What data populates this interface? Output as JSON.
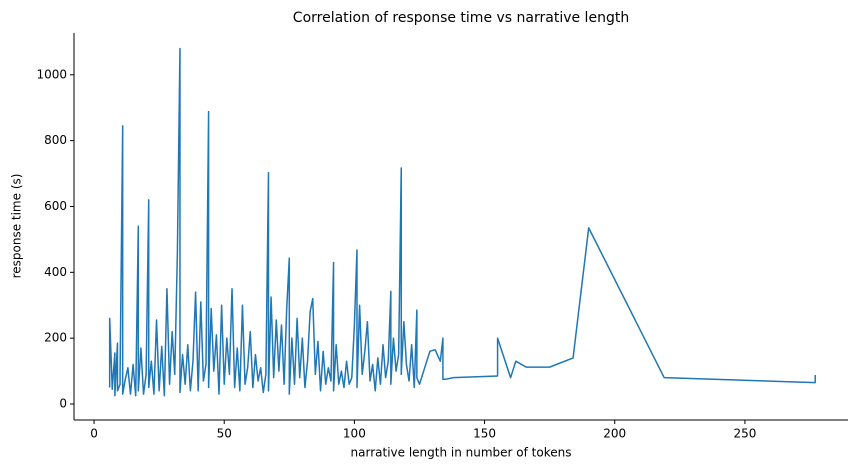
{
  "chart_data": {
    "type": "line",
    "title": "Correlation of response time vs narrative length",
    "xlabel": "narrative length in number of tokens",
    "ylabel": "response time (s)",
    "color": "#1f77b4",
    "xlim": [
      -7.7,
      289.6
    ],
    "ylim": [
      -48.6,
      1127
    ],
    "xticks": [
      0,
      50,
      100,
      150,
      200,
      250
    ],
    "yticks": [
      0,
      200,
      400,
      600,
      800,
      1000
    ],
    "x": [
      6,
      6,
      7,
      8,
      8,
      9,
      9,
      10,
      10,
      11,
      11,
      12,
      13,
      14,
      15,
      16,
      17,
      17,
      18,
      19,
      20,
      21,
      21,
      22,
      23,
      24,
      25,
      26,
      27,
      28,
      29,
      30,
      31,
      32,
      33,
      33,
      34,
      35,
      36,
      37,
      38,
      39,
      40,
      41,
      42,
      43,
      44,
      44,
      45,
      46,
      47,
      48,
      49,
      50,
      51,
      52,
      53,
      54,
      55,
      56,
      57,
      58,
      59,
      60,
      61,
      62,
      63,
      64,
      65,
      66,
      67,
      67,
      68,
      69,
      70,
      71,
      72,
      73,
      74,
      75,
      75,
      76,
      77,
      78,
      79,
      80,
      81,
      82,
      83,
      84,
      85,
      86,
      87,
      88,
      89,
      90,
      91,
      92,
      92,
      93,
      94,
      95,
      96,
      97,
      98,
      99,
      100,
      101,
      101,
      102,
      103,
      104,
      105,
      106,
      107,
      108,
      109,
      110,
      111,
      112,
      113,
      114,
      114,
      115,
      116,
      117,
      118,
      118,
      119,
      120,
      121,
      122,
      123,
      124,
      124,
      125,
      127,
      129,
      131,
      133,
      134,
      134,
      135,
      138,
      155,
      155,
      160,
      162,
      166,
      175,
      184,
      190,
      219,
      277,
      277
    ],
    "values": [
      50,
      260,
      45,
      155,
      25,
      185,
      40,
      60,
      90,
      845,
      30,
      75,
      110,
      30,
      120,
      25,
      540,
      40,
      170,
      30,
      90,
      620,
      50,
      130,
      30,
      255,
      40,
      175,
      25,
      350,
      60,
      220,
      90,
      455,
      1080,
      35,
      150,
      60,
      180,
      40,
      130,
      340,
      40,
      310,
      70,
      120,
      888,
      50,
      290,
      100,
      210,
      30,
      300,
      60,
      200,
      90,
      350,
      50,
      170,
      40,
      300,
      60,
      110,
      220,
      50,
      150,
      70,
      110,
      35,
      90,
      703,
      40,
      325,
      80,
      255,
      100,
      240,
      60,
      290,
      443,
      30,
      200,
      60,
      260,
      80,
      200,
      50,
      130,
      280,
      320,
      90,
      190,
      40,
      160,
      60,
      110,
      70,
      430,
      40,
      180,
      60,
      100,
      50,
      130,
      60,
      80,
      240,
      468,
      50,
      300,
      90,
      160,
      250,
      70,
      120,
      40,
      140,
      60,
      180,
      80,
      130,
      342,
      60,
      200,
      100,
      150,
      717,
      90,
      250,
      120,
      70,
      180,
      50,
      285,
      80,
      60,
      110,
      160,
      165,
      130,
      200,
      75,
      75,
      80,
      85,
      200,
      80,
      130,
      112,
      112,
      140,
      535,
      80,
      65,
      88
    ]
  }
}
